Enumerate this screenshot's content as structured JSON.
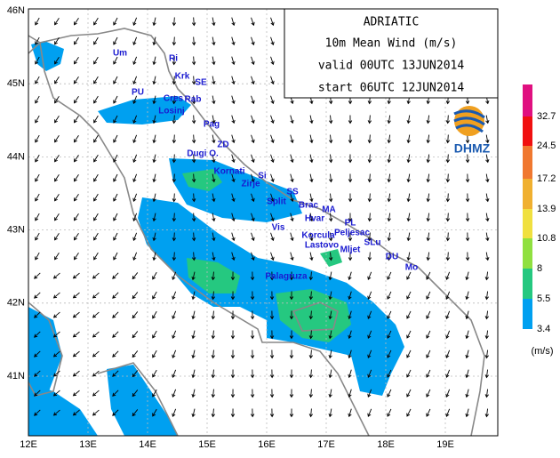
{
  "title": {
    "region": "ADRIATIC",
    "field": "10m Mean Wind (m/s)",
    "valid": "valid 00UTC 13JUN2014",
    "start": "start 06UTC 12JUN2014"
  },
  "logo": "DHMZ",
  "axes": {
    "lon": [
      "12E",
      "13E",
      "14E",
      "15E",
      "16E",
      "17E",
      "18E",
      "19E"
    ],
    "lat": [
      "46N",
      "45N",
      "44N",
      "43N",
      "42N",
      "41N"
    ]
  },
  "places": [
    "Um",
    "Ri",
    "Krk",
    "SE",
    "PU",
    "Cres",
    "Rab",
    "Losinj",
    "Pag",
    "ZD",
    "Dugi O.",
    "Kornati",
    "Si",
    "Zirje",
    "SS",
    "Split",
    "Brac",
    "MA",
    "Hvar",
    "PL",
    "Vis",
    "Korcula",
    "Peljesac",
    "Lastovo",
    "SLu",
    "Mljet",
    "DU",
    "Mo",
    "Palagruza"
  ],
  "legend": {
    "items": [
      {
        "label": "3.4",
        "color": "#00a0f0"
      },
      {
        "label": "5.5",
        "color": "#25c880"
      },
      {
        "label": "8",
        "color": "#90e040"
      },
      {
        "label": "10.8",
        "color": "#f0e040"
      },
      {
        "label": "13.9",
        "color": "#f0b030"
      },
      {
        "label": "17.2",
        "color": "#f07830"
      },
      {
        "label": "24.5",
        "color": "#f01010"
      },
      {
        "label": "32.7",
        "color": "#e01080"
      }
    ],
    "units": "(m/s)"
  }
}
